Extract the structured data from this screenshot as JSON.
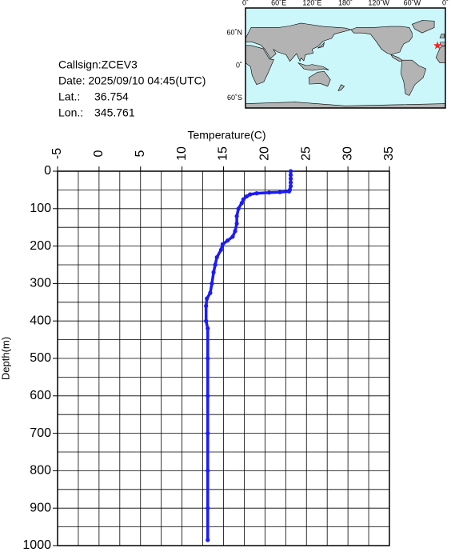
{
  "header": {
    "callsign": "Callsign:ZCEV3",
    "date": "Date:  2025/09/10 04:45(UTC)",
    "lat_label": "Lat.:",
    "lat": 36.754,
    "lon_label": "Lon.:",
    "lon": 345.761
  },
  "map": {
    "lon_ticks": [
      "0˚",
      "60˚E",
      "120˚E",
      "180˚",
      "120˚W",
      "60˚W",
      "0˚"
    ],
    "lat_ticks": [
      "60˚N",
      "0˚",
      "60˚S"
    ]
  },
  "chart_data": {
    "type": "line",
    "xlabel": "Temperature(C)",
    "ylabel": "Depth(m)",
    "x": [
      23.1,
      23.1,
      23.1,
      23.1,
      23.1,
      23.0,
      22.9,
      21.8,
      20.5,
      19.0,
      18.2,
      17.8,
      17.4,
      17.2,
      16.8,
      16.6,
      16.6,
      16.4,
      16.1,
      15.5,
      14.9,
      14.7,
      14.2,
      14.0,
      13.8,
      13.6,
      13.4,
      13.0,
      12.9,
      12.9,
      13.1,
      13.1,
      13.1,
      13.1,
      13.1,
      13.1,
      13.1
    ],
    "values": [
      0,
      10,
      20,
      30,
      40,
      50,
      54,
      56,
      57,
      59,
      62,
      67,
      75,
      85,
      100,
      120,
      140,
      160,
      175,
      185,
      195,
      210,
      230,
      250,
      270,
      300,
      325,
      340,
      360,
      400,
      420,
      500,
      600,
      700,
      800,
      900,
      985
    ],
    "color": "#1a1aff",
    "xlim": [
      -5,
      35
    ],
    "xticks": [
      -5,
      0,
      5,
      10,
      15,
      20,
      25,
      30,
      35
    ],
    "ylim": [
      0,
      1000
    ],
    "yticks": [
      0,
      100,
      200,
      300,
      400,
      500,
      600,
      700,
      800,
      900,
      1000
    ],
    "xminor": [
      -2.5,
      2.5,
      7.5,
      12.5,
      17.5,
      22.5,
      27.5,
      32.5
    ],
    "yminor": [
      50,
      150,
      250,
      350,
      450,
      550,
      650,
      750,
      850,
      950
    ],
    "grid": true
  }
}
